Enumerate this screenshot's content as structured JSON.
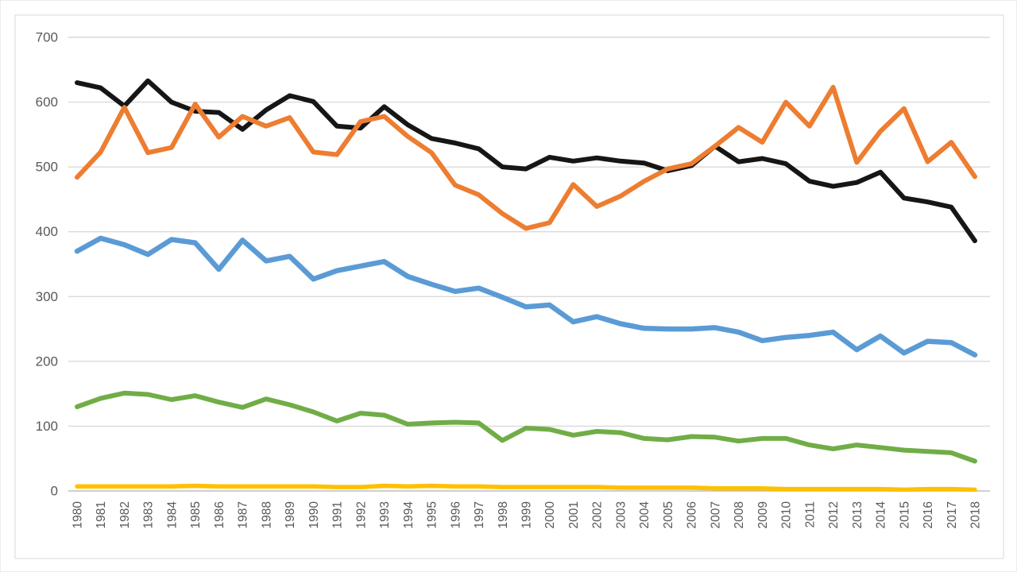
{
  "chart_data": {
    "type": "line",
    "title": "",
    "xlabel": "",
    "ylabel": "",
    "x": [
      "1980",
      "1981",
      "1982",
      "1983",
      "1984",
      "1985",
      "1986",
      "1987",
      "1988",
      "1989",
      "1990",
      "1991",
      "1992",
      "1993",
      "1994",
      "1995",
      "1996",
      "1997",
      "1998",
      "1999",
      "2000",
      "2001",
      "2002",
      "2003",
      "2004",
      "2005",
      "2006",
      "2007",
      "2008",
      "2009",
      "2010",
      "2011",
      "2012",
      "2013",
      "2014",
      "2015",
      "2016",
      "2017",
      "2018"
    ],
    "series": [
      {
        "name": "black-series",
        "color": "#161616",
        "stroke_width": 6,
        "values": [
          630,
          622,
          594,
          633,
          600,
          586,
          584,
          558,
          588,
          610,
          601,
          563,
          560,
          593,
          565,
          544,
          537,
          528,
          500,
          497,
          515,
          509,
          514,
          509,
          506,
          494,
          502,
          532,
          508,
          513,
          505,
          478,
          470,
          476,
          492,
          452,
          446,
          438,
          386
        ]
      },
      {
        "name": "orange-series",
        "color": "#ED7D31",
        "stroke_width": 6,
        "values": [
          484,
          523,
          592,
          522,
          530,
          597,
          546,
          578,
          563,
          576,
          523,
          519,
          570,
          578,
          547,
          522,
          472,
          457,
          428,
          405,
          414,
          473,
          439,
          455,
          478,
          497,
          505,
          532,
          561,
          538,
          600,
          563,
          623,
          507,
          555,
          590,
          508,
          538,
          485
        ]
      },
      {
        "name": "blue-series",
        "color": "#5B9BD5",
        "stroke_width": 6.5,
        "values": [
          370,
          390,
          380,
          365,
          388,
          383,
          342,
          387,
          355,
          362,
          327,
          340,
          347,
          354,
          331,
          319,
          308,
          313,
          299,
          284,
          287,
          261,
          269,
          258,
          251,
          250,
          250,
          252,
          245,
          232,
          237,
          240,
          245,
          218,
          239,
          213,
          231,
          229,
          210
        ]
      },
      {
        "name": "green-series",
        "color": "#70AD47",
        "stroke_width": 6,
        "values": [
          130,
          143,
          151,
          149,
          141,
          147,
          137,
          129,
          142,
          133,
          122,
          108,
          120,
          117,
          103,
          105,
          106,
          105,
          78,
          97,
          95,
          86,
          92,
          90,
          81,
          79,
          84,
          83,
          77,
          81,
          81,
          71,
          65,
          71,
          67,
          63,
          61,
          59,
          46
        ]
      },
      {
        "name": "yellow-series",
        "color": "#FFC000",
        "stroke_width": 5.5,
        "values": [
          7,
          7,
          7,
          7,
          7,
          8,
          7,
          7,
          7,
          7,
          7,
          6,
          6,
          8,
          7,
          8,
          7,
          7,
          6,
          6,
          6,
          6,
          6,
          5,
          5,
          5,
          5,
          4,
          4,
          4,
          3,
          3,
          3,
          3,
          3,
          2,
          3,
          3,
          2
        ]
      }
    ],
    "ylim": [
      0,
      700
    ],
    "yticks": [
      0,
      100,
      200,
      300,
      400,
      500,
      600,
      700
    ],
    "grid": true,
    "legend": "none",
    "axis_label_color": "#595959",
    "gridline_color": "#D9D9D9",
    "axis_line_color": "#BFBFBF",
    "plot_border_color": "#D9D9D9",
    "background_color": "#FFFFFF"
  }
}
